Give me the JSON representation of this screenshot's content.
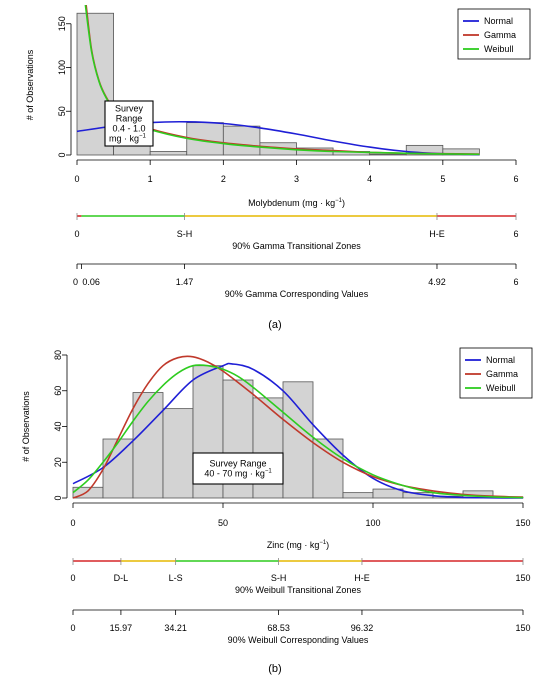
{
  "chart_data": [
    {
      "type": "bar",
      "panel_label": "(a)",
      "xlabel": "Molybdenum (mg · kg",
      "xlabel_sup": "−1",
      "xlabel_end": ")",
      "ylabel": "# of Observations",
      "xlim": [
        0,
        6
      ],
      "ylim": [
        0,
        160
      ],
      "xticks": [
        0,
        1,
        2,
        3,
        4,
        5,
        6
      ],
      "yticks": [
        0,
        50,
        100,
        150
      ],
      "bins": [
        {
          "x0": 0.0,
          "x1": 0.5,
          "count": 162
        },
        {
          "x0": 0.5,
          "x1": 1.0,
          "count": 25
        },
        {
          "x0": 1.0,
          "x1": 1.5,
          "count": 4
        },
        {
          "x0": 1.5,
          "x1": 2.0,
          "count": 37
        },
        {
          "x0": 2.0,
          "x1": 2.5,
          "count": 33
        },
        {
          "x0": 2.5,
          "x1": 3.0,
          "count": 14
        },
        {
          "x0": 3.0,
          "x1": 3.5,
          "count": 8
        },
        {
          "x0": 3.5,
          "x1": 4.0,
          "count": 4
        },
        {
          "x0": 4.0,
          "x1": 4.5,
          "count": 1
        },
        {
          "x0": 4.5,
          "x1": 5.0,
          "count": 11
        },
        {
          "x0": 5.0,
          "x1": 5.5,
          "count": 7
        }
      ],
      "series": [
        {
          "name": "Normal",
          "color": "#1f1fd6",
          "x": [
            0,
            0.5,
            1,
            1.5,
            2,
            2.5,
            3,
            3.5,
            4,
            4.5,
            5,
            5.5
          ],
          "y": [
            27,
            33,
            37,
            38,
            36,
            31,
            24,
            16,
            9,
            4,
            1.5,
            0.5
          ]
        },
        {
          "name": "Gamma",
          "color": "#c0392b",
          "x": [
            0.12,
            0.2,
            0.3,
            0.4,
            0.5,
            0.7,
            1,
            1.5,
            2,
            2.5,
            3,
            3.5,
            4,
            4.5,
            5,
            5.5
          ],
          "y": [
            175,
            120,
            85,
            66,
            54,
            40,
            30,
            20,
            14,
            10,
            7,
            5,
            3,
            2,
            1.5,
            1
          ]
        },
        {
          "name": "Weibull",
          "color": "#2ecc1f",
          "x": [
            0.11,
            0.2,
            0.3,
            0.4,
            0.5,
            0.7,
            1,
            1.5,
            2,
            2.5,
            3,
            3.5,
            4,
            4.5,
            5,
            5.5
          ],
          "y": [
            175,
            118,
            84,
            65,
            53,
            39,
            29,
            19,
            13,
            9,
            6,
            4,
            3,
            2,
            1.2,
            0.8
          ]
        }
      ],
      "legend": [
        "Normal",
        "Gamma",
        "Weibull"
      ],
      "legend_position": "top-right",
      "annotation": {
        "lines": [
          "Survey",
          "Range",
          "0.4 - 1.0",
          "mg · kg"
        ],
        "sup": "−1"
      },
      "zones": {
        "label": "90% Gamma Transitional Zones",
        "tick_labels": [
          {
            "v": 0,
            "t": "0"
          },
          {
            "v": 1.47,
            "t": "S-H"
          },
          {
            "v": 4.92,
            "t": "H-E"
          },
          {
            "v": 6,
            "t": "6"
          }
        ],
        "segments": [
          {
            "x0": 0,
            "x1": 0.06,
            "color": "#d62728"
          },
          {
            "x0": 0.06,
            "x1": 1.47,
            "color": "#2ecc1f"
          },
          {
            "x0": 1.47,
            "x1": 4.92,
            "color": "#e6b800"
          },
          {
            "x0": 4.92,
            "x1": 6,
            "color": "#d62728"
          }
        ]
      },
      "values_axis": {
        "label": "90% Gamma Corresponding Values",
        "ticks": [
          {
            "v": 0,
            "t": "0"
          },
          {
            "v": 0.06,
            "t": "0.06"
          },
          {
            "v": 1.47,
            "t": "1.47"
          },
          {
            "v": 4.92,
            "t": "4.92"
          },
          {
            "v": 6,
            "t": "6"
          }
        ]
      }
    },
    {
      "type": "bar",
      "panel_label": "(b)",
      "xlabel": "Zinc (mg · kg",
      "xlabel_sup": "−1",
      "xlabel_end": ")",
      "ylabel": "# of Observations",
      "xlim": [
        0,
        150
      ],
      "ylim": [
        0,
        80
      ],
      "xticks": [
        0,
        50,
        100,
        150
      ],
      "yticks": [
        0,
        20,
        40,
        60,
        80
      ],
      "bins": [
        {
          "x0": 0,
          "x1": 10,
          "count": 6
        },
        {
          "x0": 10,
          "x1": 20,
          "count": 33
        },
        {
          "x0": 20,
          "x1": 30,
          "count": 59
        },
        {
          "x0": 30,
          "x1": 40,
          "count": 50
        },
        {
          "x0": 40,
          "x1": 50,
          "count": 74
        },
        {
          "x0": 50,
          "x1": 60,
          "count": 66
        },
        {
          "x0": 60,
          "x1": 70,
          "count": 56
        },
        {
          "x0": 70,
          "x1": 80,
          "count": 65
        },
        {
          "x0": 80,
          "x1": 90,
          "count": 33
        },
        {
          "x0": 90,
          "x1": 100,
          "count": 3
        },
        {
          "x0": 100,
          "x1": 110,
          "count": 5
        },
        {
          "x0": 110,
          "x1": 120,
          "count": 3
        },
        {
          "x0": 120,
          "x1": 130,
          "count": 1
        },
        {
          "x0": 130,
          "x1": 140,
          "count": 4
        },
        {
          "x0": 140,
          "x1": 150,
          "count": 0.5
        }
      ],
      "series": [
        {
          "name": "Normal",
          "color": "#1f1fd6",
          "x": [
            0,
            10,
            20,
            30,
            40,
            50,
            53,
            60,
            70,
            80,
            90,
            100,
            110,
            120,
            130,
            140,
            150
          ],
          "y": [
            8,
            17,
            32,
            49,
            66,
            74,
            75,
            72,
            60,
            41,
            24,
            11,
            4,
            1.3,
            0.3,
            0.1,
            0
          ]
        },
        {
          "name": "Gamma",
          "color": "#c0392b",
          "x": [
            0,
            5,
            10,
            15,
            20,
            25,
            30,
            35,
            40,
            45,
            50,
            60,
            70,
            80,
            90,
            100,
            110,
            120,
            130,
            140,
            150
          ],
          "y": [
            0,
            4,
            16,
            33,
            50,
            64,
            74,
            78.5,
            79,
            76,
            71,
            58,
            44,
            31,
            20,
            12,
            7,
            4,
            2,
            1,
            0.5
          ]
        },
        {
          "name": "Weibull",
          "color": "#2ecc1f",
          "x": [
            0,
            5,
            10,
            15,
            20,
            25,
            30,
            35,
            40,
            45,
            50,
            55,
            60,
            70,
            80,
            90,
            100,
            110,
            120,
            130,
            140,
            150
          ],
          "y": [
            3,
            10,
            20,
            31,
            43,
            54,
            63,
            70,
            74,
            74,
            72,
            68,
            62,
            48,
            34,
            22,
            13,
            7,
            3,
            1.5,
            0.6,
            0.2
          ]
        }
      ],
      "legend": [
        "Normal",
        "Gamma",
        "Weibull"
      ],
      "legend_position": "top-right",
      "annotation": {
        "lines": [
          "Survey Range",
          "40 - 70 mg · kg"
        ],
        "sup": "−1"
      },
      "zones": {
        "label": "90% Weibull Transitional Zones",
        "tick_labels": [
          {
            "v": 0,
            "t": "0"
          },
          {
            "v": 15.97,
            "t": "D-L"
          },
          {
            "v": 34.21,
            "t": "L-S"
          },
          {
            "v": 68.53,
            "t": "S-H"
          },
          {
            "v": 96.32,
            "t": "H-E"
          },
          {
            "v": 150,
            "t": "150"
          }
        ],
        "segments": [
          {
            "x0": 0,
            "x1": 15.97,
            "color": "#d62728"
          },
          {
            "x0": 15.97,
            "x1": 34.21,
            "color": "#e6b800"
          },
          {
            "x0": 34.21,
            "x1": 68.53,
            "color": "#2ecc1f"
          },
          {
            "x0": 68.53,
            "x1": 96.32,
            "color": "#e6b800"
          },
          {
            "x0": 96.32,
            "x1": 150,
            "color": "#d62728"
          }
        ]
      },
      "values_axis": {
        "label": "90% Weibull Corresponding Values",
        "ticks": [
          {
            "v": 0,
            "t": "0"
          },
          {
            "v": 15.97,
            "t": "15.97"
          },
          {
            "v": 34.21,
            "t": "34.21"
          },
          {
            "v": 68.53,
            "t": "68.53"
          },
          {
            "v": 96.32,
            "t": "96.32"
          },
          {
            "v": 150,
            "t": "150"
          }
        ]
      }
    }
  ]
}
